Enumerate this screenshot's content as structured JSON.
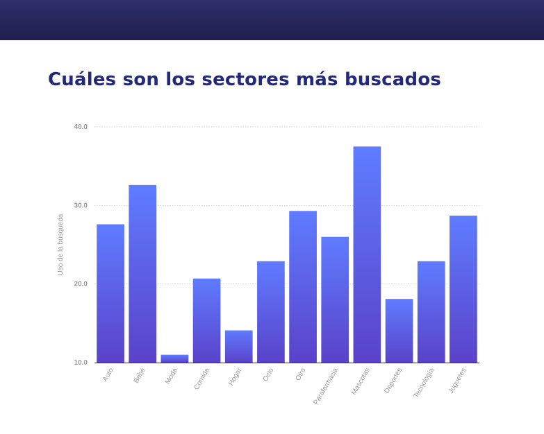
{
  "page": {
    "title": "Cuáles son los sectores más buscados"
  },
  "colors": {
    "header_bar": "#26265a",
    "title": "#23297a",
    "bar_top": "#5f7cff",
    "bar_bottom": "#5a42c9",
    "grid": "#cfcfcf",
    "axis_text": "#9a9a9a"
  },
  "chart_data": {
    "type": "bar",
    "title": "Cuáles son los sectores más buscados",
    "xlabel": "",
    "ylabel": "Uso de la búsqueda",
    "ylim": [
      10,
      40
    ],
    "yticks": [
      "10.0",
      "20.0",
      "30.0",
      "40.0"
    ],
    "grid": true,
    "categories": [
      "Auto",
      "Bebé",
      "Moda",
      "Comida",
      "Hogar",
      "Ocio",
      "Otro",
      "Parafarmacia",
      "Mascotas",
      "Deportes",
      "Tecnología",
      "Juguetes"
    ],
    "values": [
      27.6,
      32.6,
      11.0,
      20.7,
      14.1,
      22.9,
      29.3,
      26.0,
      37.5,
      18.1,
      22.9,
      28.7
    ]
  }
}
